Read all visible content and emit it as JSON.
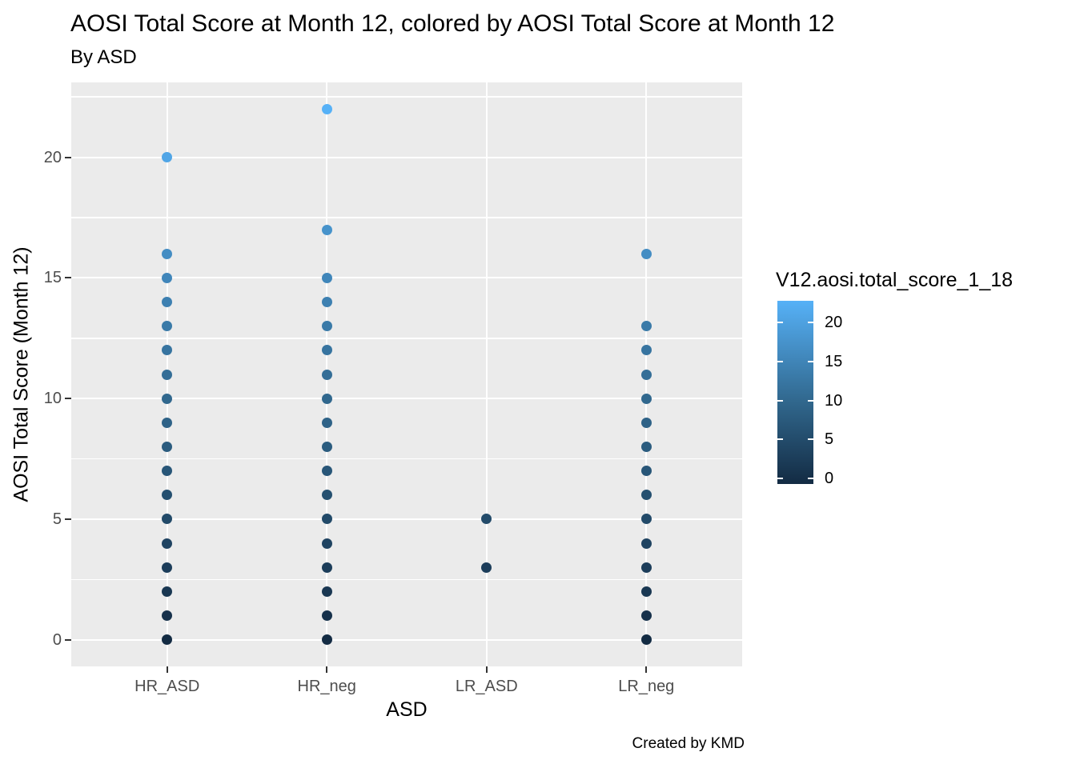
{
  "chart_data": {
    "type": "scatter",
    "title": "AOSI Total Score at Month 12, colored by AOSI Total Score at Month 12",
    "subtitle": "By ASD",
    "caption": "Created by KMD",
    "xlabel": "ASD",
    "ylabel": "AOSI Total Score (Month 12)",
    "categories": [
      "HR_ASD",
      "HR_neg",
      "LR_ASD",
      "LR_neg"
    ],
    "groups": [
      {
        "category": "HR_ASD",
        "values": [
          0,
          1,
          2,
          3,
          4,
          5,
          6,
          7,
          8,
          9,
          10,
          11,
          12,
          13,
          14,
          15,
          16,
          20
        ]
      },
      {
        "category": "HR_neg",
        "values": [
          0,
          1,
          2,
          3,
          4,
          5,
          6,
          7,
          8,
          9,
          10,
          11,
          12,
          13,
          14,
          15,
          17,
          22
        ]
      },
      {
        "category": "LR_ASD",
        "values": [
          3,
          5
        ]
      },
      {
        "category": "LR_neg",
        "values": [
          0,
          1,
          2,
          3,
          4,
          5,
          6,
          7,
          8,
          9,
          10,
          11,
          12,
          13,
          16
        ]
      }
    ],
    "y_axis": {
      "ticks": [
        0,
        5,
        10,
        15,
        20
      ],
      "minor_ticks": [
        2.5,
        7.5,
        12.5,
        17.5,
        22.5
      ],
      "limits": [
        -1.1,
        23.1
      ]
    },
    "legend": {
      "title": "V12.aosi.total_score_1_18",
      "type": "colorbar",
      "position": "right",
      "ticks": [
        20,
        15,
        10,
        5,
        0
      ],
      "domain": [
        0,
        22
      ],
      "colors": {
        "low": "#132B43",
        "mid": "#31688E",
        "high": "#56B1F7"
      }
    },
    "style": {
      "panel_bg": "#EBEBEB",
      "grid_color": "#FFFFFF",
      "tick_label_color": "#4D4D4D",
      "tick_mark_color": "#333333",
      "text_color": "#000000",
      "grid": true
    }
  }
}
